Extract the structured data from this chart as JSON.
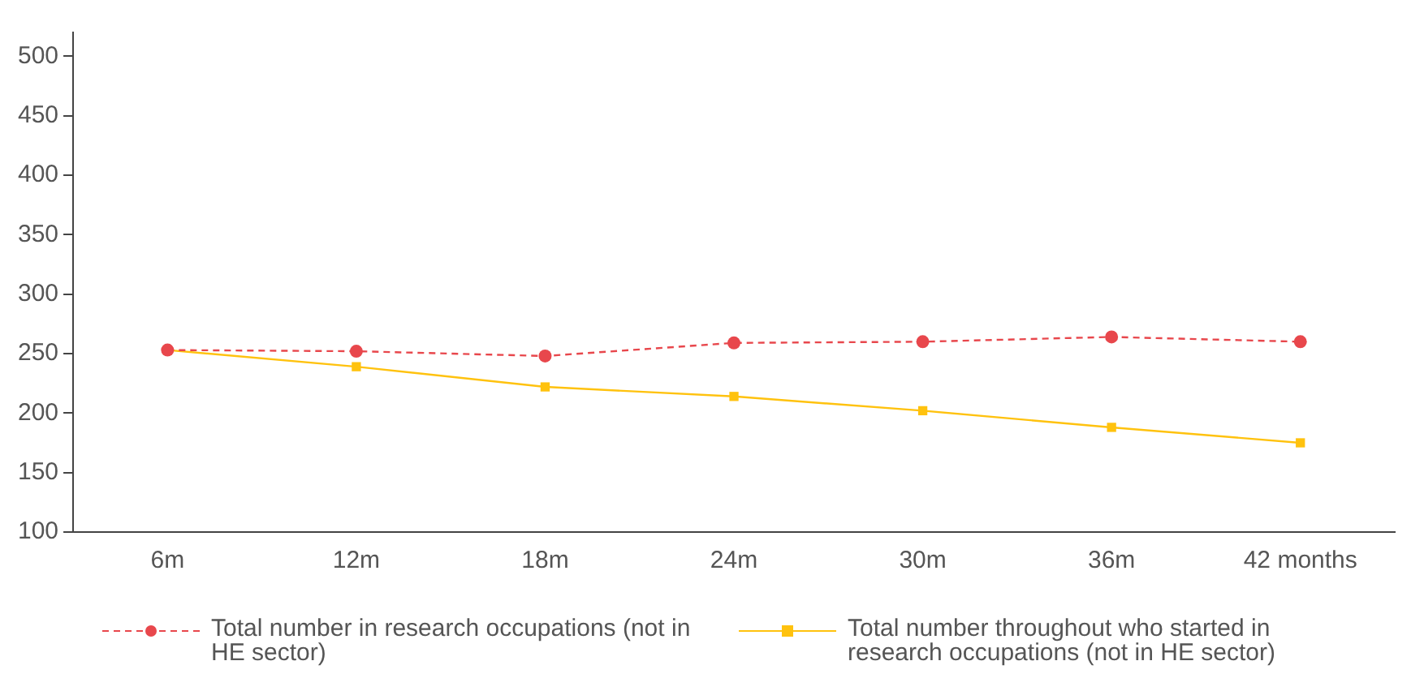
{
  "chart_data": {
    "type": "line",
    "categories": [
      "6m",
      "12m",
      "18m",
      "24m",
      "30m",
      "36m",
      "42 months"
    ],
    "series": [
      {
        "name": "Total number in research occupations (not in HE sector)",
        "color": "#e8474c",
        "values": [
          253,
          252,
          248,
          259,
          260,
          264,
          260
        ],
        "marker": "circle",
        "line_style": "dashed"
      },
      {
        "name": "Total number throughout who started in research occupations (not in HE sector)",
        "color": "#ffc20e",
        "values": [
          253,
          239,
          222,
          214,
          202,
          188,
          175
        ],
        "marker": "square",
        "line_style": "solid"
      }
    ],
    "ylim": [
      100,
      520
    ],
    "yticks": [
      100,
      150,
      200,
      250,
      300,
      350,
      400,
      450,
      500
    ],
    "grid": false,
    "legend": "bottom"
  }
}
